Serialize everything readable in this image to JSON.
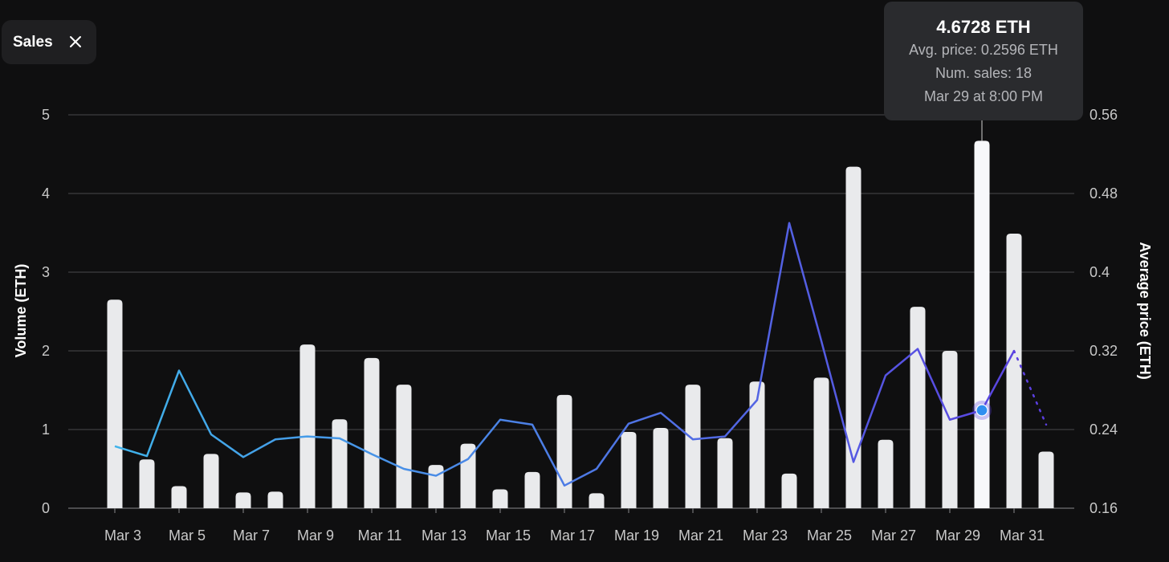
{
  "filter_chip": {
    "label": "Sales",
    "close_icon": "close-icon"
  },
  "tooltip": {
    "volume": "4.6728 ETH",
    "avg_price": "Avg. price: 0.2596 ETH",
    "num_sales": "Num. sales: 18",
    "date": "Mar 29 at 8:00 PM"
  },
  "colors": {
    "background": "#0f0f10",
    "bar": "#e9eaec",
    "bar_highlight": "#f7f8fa",
    "line_start": "#3fb6ea",
    "line_end": "#5b3fe0",
    "point": "#2f8ff0",
    "grid": "#4a4a4d"
  },
  "chart_data": {
    "type": "bar+line",
    "xlabel": "",
    "ylabel": "Volume (ETH)",
    "y2label": "Average price (ETH)",
    "ylim": [
      0,
      5
    ],
    "y2lim": [
      0.16,
      0.56
    ],
    "yticks": [
      "0",
      "1",
      "2",
      "3",
      "4",
      "5"
    ],
    "y2ticks": [
      "0.16",
      "0.24",
      "0.32",
      "0.4",
      "0.48",
      "0.56"
    ],
    "xticks": [
      "Mar 3",
      "Mar 5",
      "Mar 7",
      "Mar 9",
      "Mar 11",
      "Mar 13",
      "Mar 15",
      "Mar 17",
      "Mar 19",
      "Mar 21",
      "Mar 23",
      "Mar 25",
      "Mar 27",
      "Mar 29",
      "Mar 31"
    ],
    "xtick_index": [
      0,
      2,
      4,
      6,
      8,
      10,
      12,
      14,
      16,
      18,
      20,
      22,
      24,
      26,
      28
    ],
    "grid": true,
    "highlight_index": 27,
    "series": [
      {
        "kind": "bar",
        "axis": "left",
        "values": [
          2.65,
          0.62,
          0.28,
          0.69,
          0.2,
          0.21,
          2.08,
          1.13,
          1.91,
          1.57,
          0.55,
          0.82,
          0.24,
          0.46,
          1.44,
          0.19,
          0.97,
          1.02,
          1.57,
          0.89,
          1.61,
          0.44,
          1.66,
          4.34,
          0.87,
          2.56,
          2.0,
          4.67,
          3.49,
          0.72
        ]
      },
      {
        "kind": "line",
        "axis": "right",
        "values": [
          0.223,
          0.213,
          0.3,
          0.235,
          0.212,
          0.23,
          0.233,
          0.231,
          0.215,
          0.2,
          0.193,
          0.21,
          0.25,
          0.245,
          0.183,
          0.2,
          0.246,
          0.257,
          0.23,
          0.233,
          0.27,
          0.45,
          0.33,
          0.207,
          0.295,
          0.322,
          0.25,
          0.2596,
          0.32,
          0.245
        ],
        "dashed_from_index": 28
      }
    ]
  }
}
